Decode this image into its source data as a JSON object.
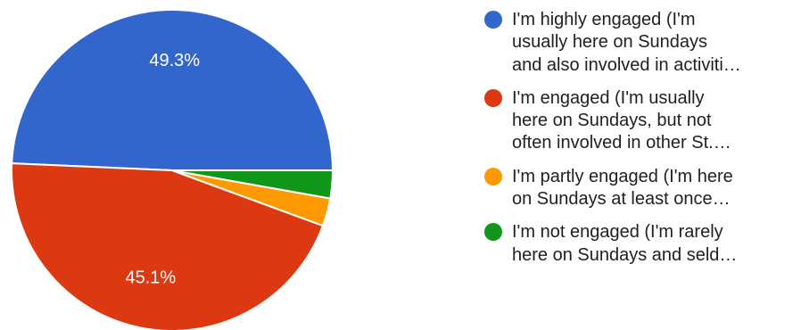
{
  "chart_data": {
    "type": "pie",
    "slices": [
      {
        "label": "I'm highly engaged (I'm usually here on Sundays and also involved in activiti…",
        "label_lines": [
          "I'm highly engaged (I'm",
          "usually here on Sundays",
          "and also involved in activiti…"
        ],
        "value": 49.3,
        "value_label": "49.3%",
        "color": "#3366cc"
      },
      {
        "label": "I'm engaged (I'm usually here on Sundays, but not often involved in other St.…",
        "label_lines": [
          "I'm engaged (I'm usually",
          "here on Sundays, but not",
          "often involved in other St.…"
        ],
        "value": 45.1,
        "value_label": "45.1%",
        "color": "#dc3912"
      },
      {
        "label": "I'm partly engaged (I'm here on Sundays at least once…",
        "label_lines": [
          "I'm partly engaged (I'm here",
          "on Sundays at least once…"
        ],
        "value": 2.8,
        "value_label": "",
        "color": "#ff9900"
      },
      {
        "label": "I'm not engaged (I'm rarely here on Sundays and seld…",
        "label_lines": [
          "I'm not engaged (I'm rarely",
          "here on Sundays and seld…"
        ],
        "value": 2.8,
        "value_label": "",
        "color": "#109618"
      }
    ],
    "start_direction": "3 o'clock",
    "direction": "counterclockwise",
    "legend_position": "right"
  }
}
